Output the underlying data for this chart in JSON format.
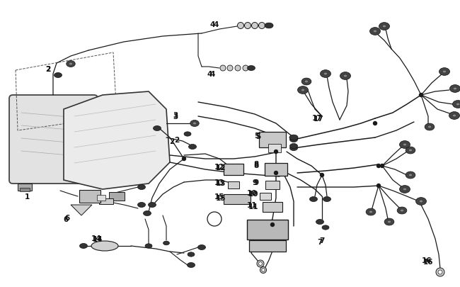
{
  "bg_color": "#ffffff",
  "fig_width": 6.5,
  "fig_height": 4.06,
  "dpi": 100,
  "line_color": "#1a1a1a",
  "label_color": "#111111",
  "label_fontsize": 7.5,
  "connector_dark": "#2a2a2a",
  "connector_mid": "#555555",
  "component_fill": "#d0d0d0",
  "component_edge": "#222222",
  "headlight_fill1": "#e0e0e0",
  "headlight_fill2": "#ececec",
  "wire_lw": 0.85
}
